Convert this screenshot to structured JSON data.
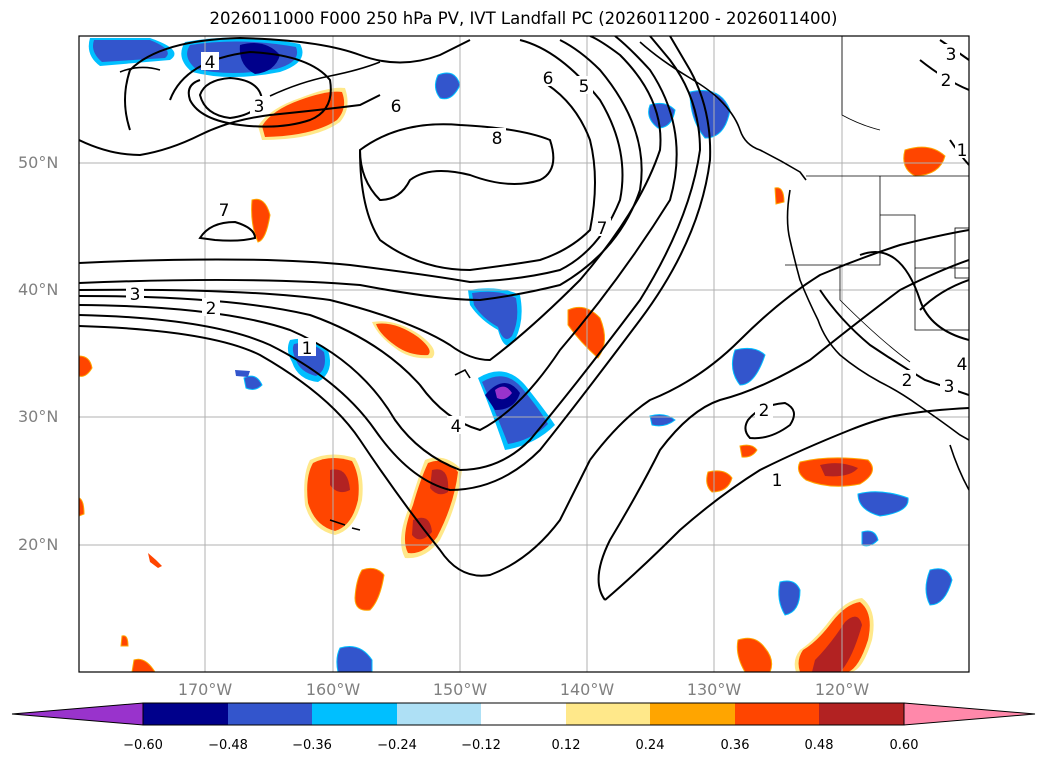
{
  "title": "2026011000 F000 250 hPa PV, IVT Landfall PC (2026011200 - 2026011400)",
  "map": {
    "lat_labels": [
      "50°N",
      "40°N",
      "30°N",
      "20°N"
    ],
    "lon_labels": [
      "170°W",
      "160°W",
      "150°W",
      "140°W",
      "130°W",
      "120°W"
    ],
    "contour_labels": [
      "4",
      "3",
      "6",
      "5",
      "6",
      "8",
      "7",
      "7",
      "3",
      "2",
      "1",
      "4",
      "2",
      "1",
      "2",
      "3",
      "2",
      "3",
      "1",
      "4"
    ]
  },
  "colorbar": {
    "colors": [
      "#9933cc",
      "#00008b",
      "#3355cc",
      "#00bfff",
      "#aee0f5",
      "#ffffff",
      "#ffe88a",
      "#ffa500",
      "#ff4500",
      "#b22222",
      "#ff88aa"
    ],
    "ticks": [
      "−0.60",
      "−0.48",
      "−0.36",
      "−0.24",
      "−0.12",
      "0.12",
      "0.24",
      "0.36",
      "0.48",
      "0.60"
    ]
  }
}
